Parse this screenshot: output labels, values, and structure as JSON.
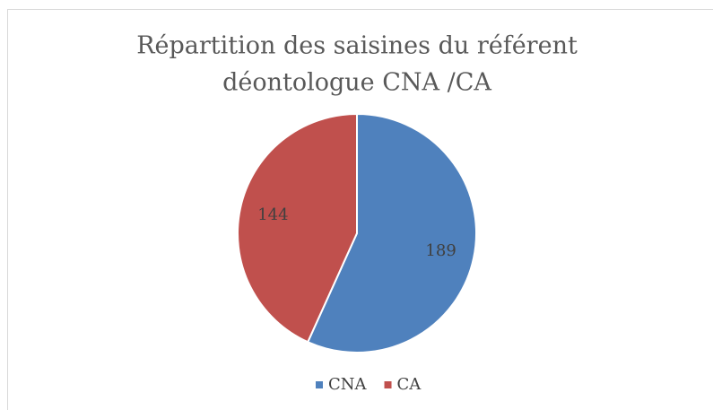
{
  "chart_data": {
    "type": "pie",
    "title": [
      "Répartition des saisines du référent",
      "déontologue CNA /CA"
    ],
    "categories": [
      "CNA",
      "CA"
    ],
    "values": [
      189,
      144
    ],
    "colors": [
      "#4f81bd",
      "#c0504d"
    ],
    "legend": "bottom"
  }
}
